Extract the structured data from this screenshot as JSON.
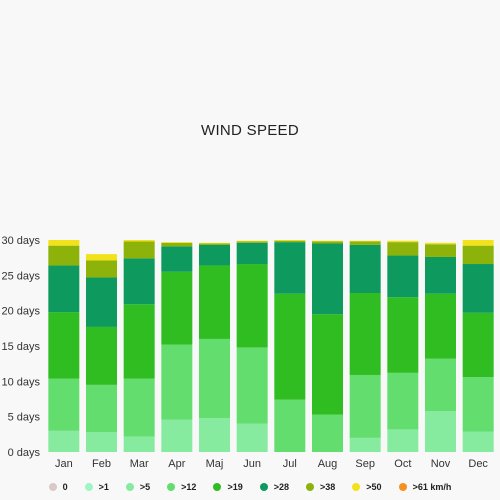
{
  "chart_data": {
    "type": "bar",
    "stacked": true,
    "title": "WIND SPEED",
    "categories": [
      "Jan",
      "Feb",
      "Mar",
      "Apr",
      "Maj",
      "Jun",
      "Jul",
      "Aug",
      "Sep",
      "Oct",
      "Nov",
      "Dec"
    ],
    "y_ticks": [
      "0 days",
      "5 days",
      "10 days",
      "15 days",
      "20 days",
      "25 days",
      "30 days"
    ],
    "ylim": [
      0,
      30
    ],
    "grid": false,
    "legend_position": "bottom",
    "series": [
      {
        "name": "0",
        "color": "#d9c9c9",
        "values": [
          0,
          0,
          0,
          0,
          0,
          0,
          0,
          0,
          0,
          0,
          0,
          0
        ]
      },
      {
        "name": ">1",
        "color": "#9ff5c4",
        "values": [
          0,
          0,
          0,
          0,
          0,
          0,
          0,
          0,
          0,
          0,
          0,
          0
        ]
      },
      {
        "name": ">5",
        "color": "#86eb9e",
        "values": [
          3.0,
          2.8,
          2.2,
          4.6,
          4.8,
          4.0,
          0,
          0,
          2.0,
          3.2,
          5.8,
          2.9
        ]
      },
      {
        "name": ">12",
        "color": "#62dd6e",
        "values": [
          7.4,
          6.7,
          8.2,
          10.6,
          11.2,
          10.8,
          7.4,
          5.3,
          8.9,
          8.0,
          7.4,
          7.7
        ]
      },
      {
        "name": ">19",
        "color": "#30bd21",
        "values": [
          9.4,
          8.2,
          10.5,
          10.3,
          10.4,
          11.8,
          15.0,
          14.2,
          11.6,
          10.7,
          9.2,
          9.1
        ]
      },
      {
        "name": ">28",
        "color": "#0e9a5e",
        "values": [
          6.6,
          7.0,
          6.5,
          3.6,
          2.9,
          3.0,
          7.3,
          10.0,
          6.8,
          5.9,
          5.2,
          6.9
        ]
      },
      {
        "name": ">38",
        "color": "#8db20a",
        "values": [
          2.8,
          2.4,
          2.4,
          0.5,
          0.2,
          0.2,
          0.2,
          0.3,
          0.5,
          1.9,
          1.8,
          2.6
        ]
      },
      {
        "name": ">50",
        "color": "#f1e21b",
        "values": [
          0.8,
          0.9,
          0.2,
          0.1,
          0.1,
          0.1,
          0.1,
          0.1,
          0.1,
          0.2,
          0.2,
          0.8
        ]
      },
      {
        "name": ">61 km/h",
        "color": "#f59120",
        "values": [
          0,
          0,
          0,
          0,
          0,
          0,
          0,
          0,
          0,
          0,
          0,
          0
        ]
      }
    ]
  }
}
